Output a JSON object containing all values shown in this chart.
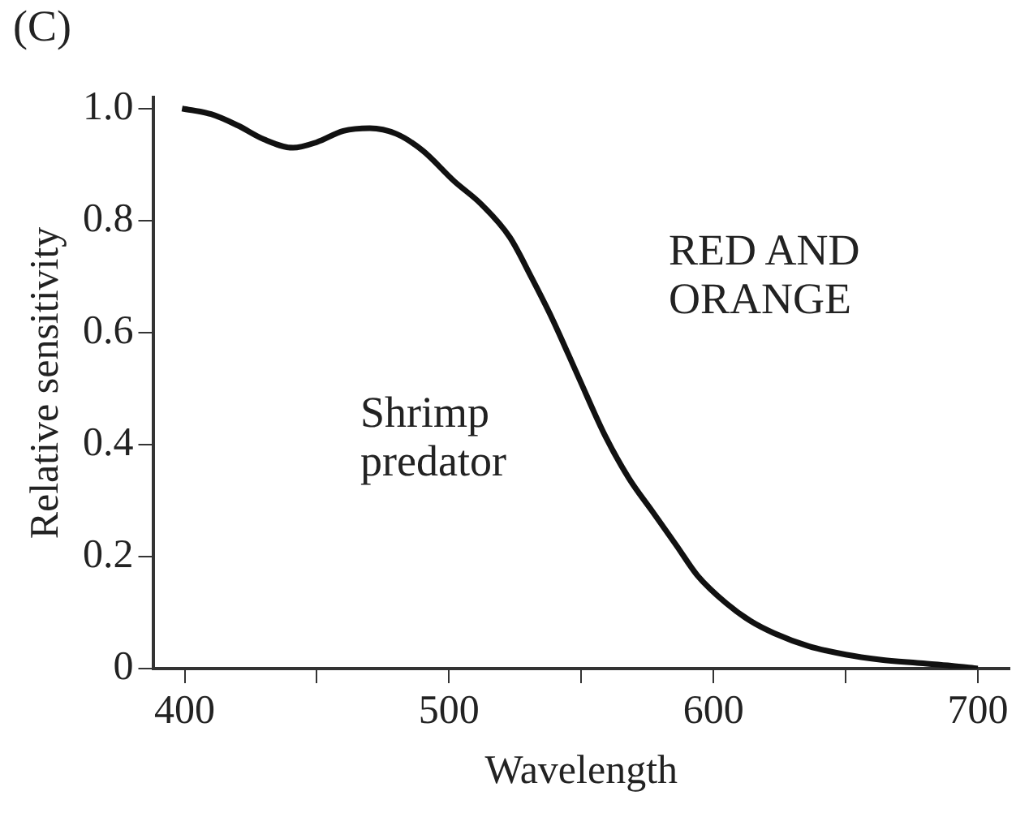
{
  "chart_data": {
    "type": "line",
    "xlabel": "Wavelength",
    "ylabel": "Relative sensitivity",
    "annotations": [
      "(C)",
      "RED AND ORANGE",
      "Shrimp predator"
    ],
    "x": [
      399,
      410,
      420,
      430,
      441,
      450,
      460,
      470,
      480,
      490,
      502,
      512,
      523,
      531,
      539,
      549,
      559,
      568,
      577,
      586,
      594,
      605,
      614,
      623,
      636,
      650,
      663,
      677,
      690,
      700
    ],
    "series": [
      {
        "color": "#111111",
        "values": [
          1.0,
          0.99,
          0.97,
          0.945,
          0.93,
          0.94,
          0.96,
          0.965,
          0.955,
          0.925,
          0.87,
          0.83,
          0.77,
          0.7,
          0.625,
          0.52,
          0.416,
          0.34,
          0.28,
          0.22,
          0.166,
          0.116,
          0.085,
          0.063,
          0.04,
          0.025,
          0.016,
          0.01,
          0.005,
          0.0
        ]
      }
    ],
    "xlim": [
      388,
      712
    ],
    "ylim": [
      0,
      1.02
    ],
    "xticks": [
      400,
      {
        "value": 450,
        "label": null
      },
      500,
      {
        "value": 550,
        "label": null
      },
      600,
      {
        "value": 650,
        "label": null
      },
      700
    ],
    "yticks": [
      {
        "value": 0,
        "label": "0"
      },
      {
        "value": 0.2,
        "label": "0.2"
      },
      {
        "value": 0.4,
        "label": "0.4"
      },
      {
        "value": 0.6,
        "label": "0.6"
      },
      {
        "value": 0.8,
        "label": "0.8"
      },
      {
        "value": 1.0,
        "label": "1.0"
      }
    ],
    "grid": false,
    "legend": false,
    "marker": "none",
    "line_style": "solid"
  }
}
